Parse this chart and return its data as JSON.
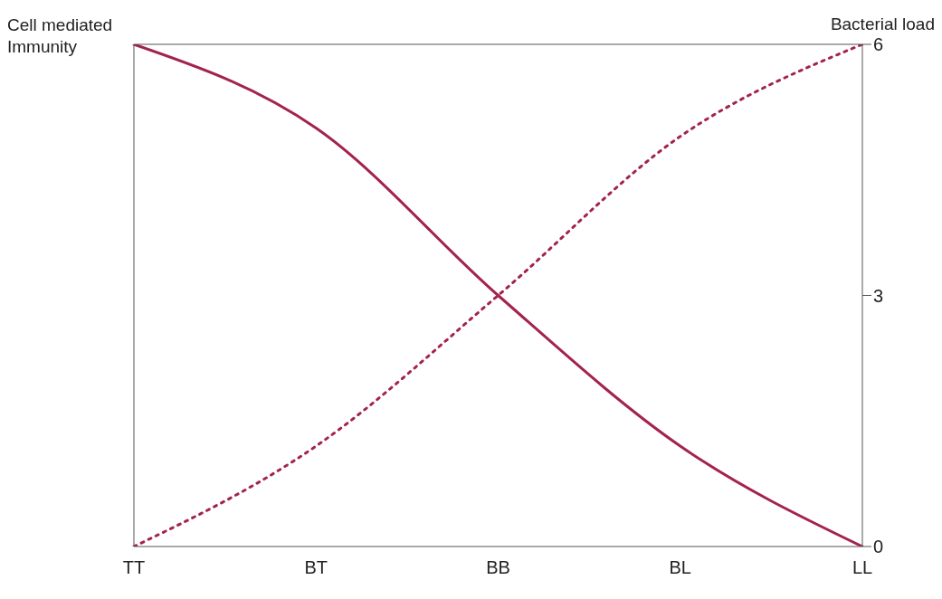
{
  "chart_data": {
    "type": "line",
    "ylabel": "Cell mediated Immunity",
    "y2label": "Bacterial load",
    "categories": [
      "TT",
      "BT",
      "BB",
      "BL",
      "LL"
    ],
    "series": [
      {
        "color": "#a3234e",
        "values": [
          6,
          5.0,
          3.0,
          1.2,
          0
        ],
        "axis": "y2",
        "line_style": "solid"
      },
      {
        "color": "#a3234e",
        "values": [
          0,
          1.2,
          3.0,
          4.9,
          6
        ],
        "axis": "y2",
        "line_style": "dotted"
      }
    ],
    "y2lim": [
      0,
      6
    ],
    "y2ticks": [
      0,
      3,
      6
    ],
    "marker": "none"
  }
}
